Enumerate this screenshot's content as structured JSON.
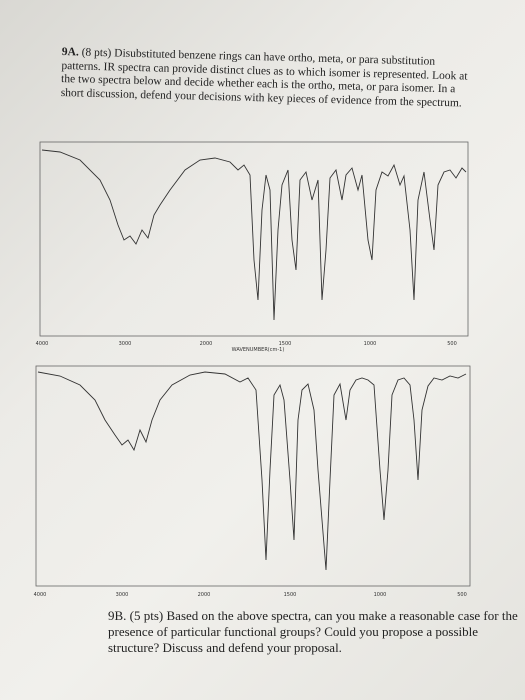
{
  "question_9a": {
    "label": "9A.",
    "points": "(8 pts)",
    "text": "Disubstituted benzene rings can have ortho, meta, or para substitution patterns. IR spectra can provide distinct clues as to which isomer is represented. Look at the two spectra below and decide whether each is the ortho, meta, or para isomer. In a short discussion, defend your decisions with key pieces of evidence from the spectrum."
  },
  "spectrum_1": {
    "x_tick_labels": [
      "4000",
      "3000",
      "2000",
      "1500",
      "1000",
      "500"
    ],
    "x_axis_label": "WAVENUMBER(cm-1)"
  },
  "spectrum_2": {
    "x_tick_labels": [
      "4000",
      "3000",
      "2000",
      "1500",
      "1000",
      "500"
    ]
  },
  "question_9b": {
    "label": "9B.",
    "points": "(5 pts)",
    "text": "Based on the above spectra, can you make a reasonable case for the presence of particular functional groups? Could you propose a possible structure? Discuss and defend your proposal."
  }
}
